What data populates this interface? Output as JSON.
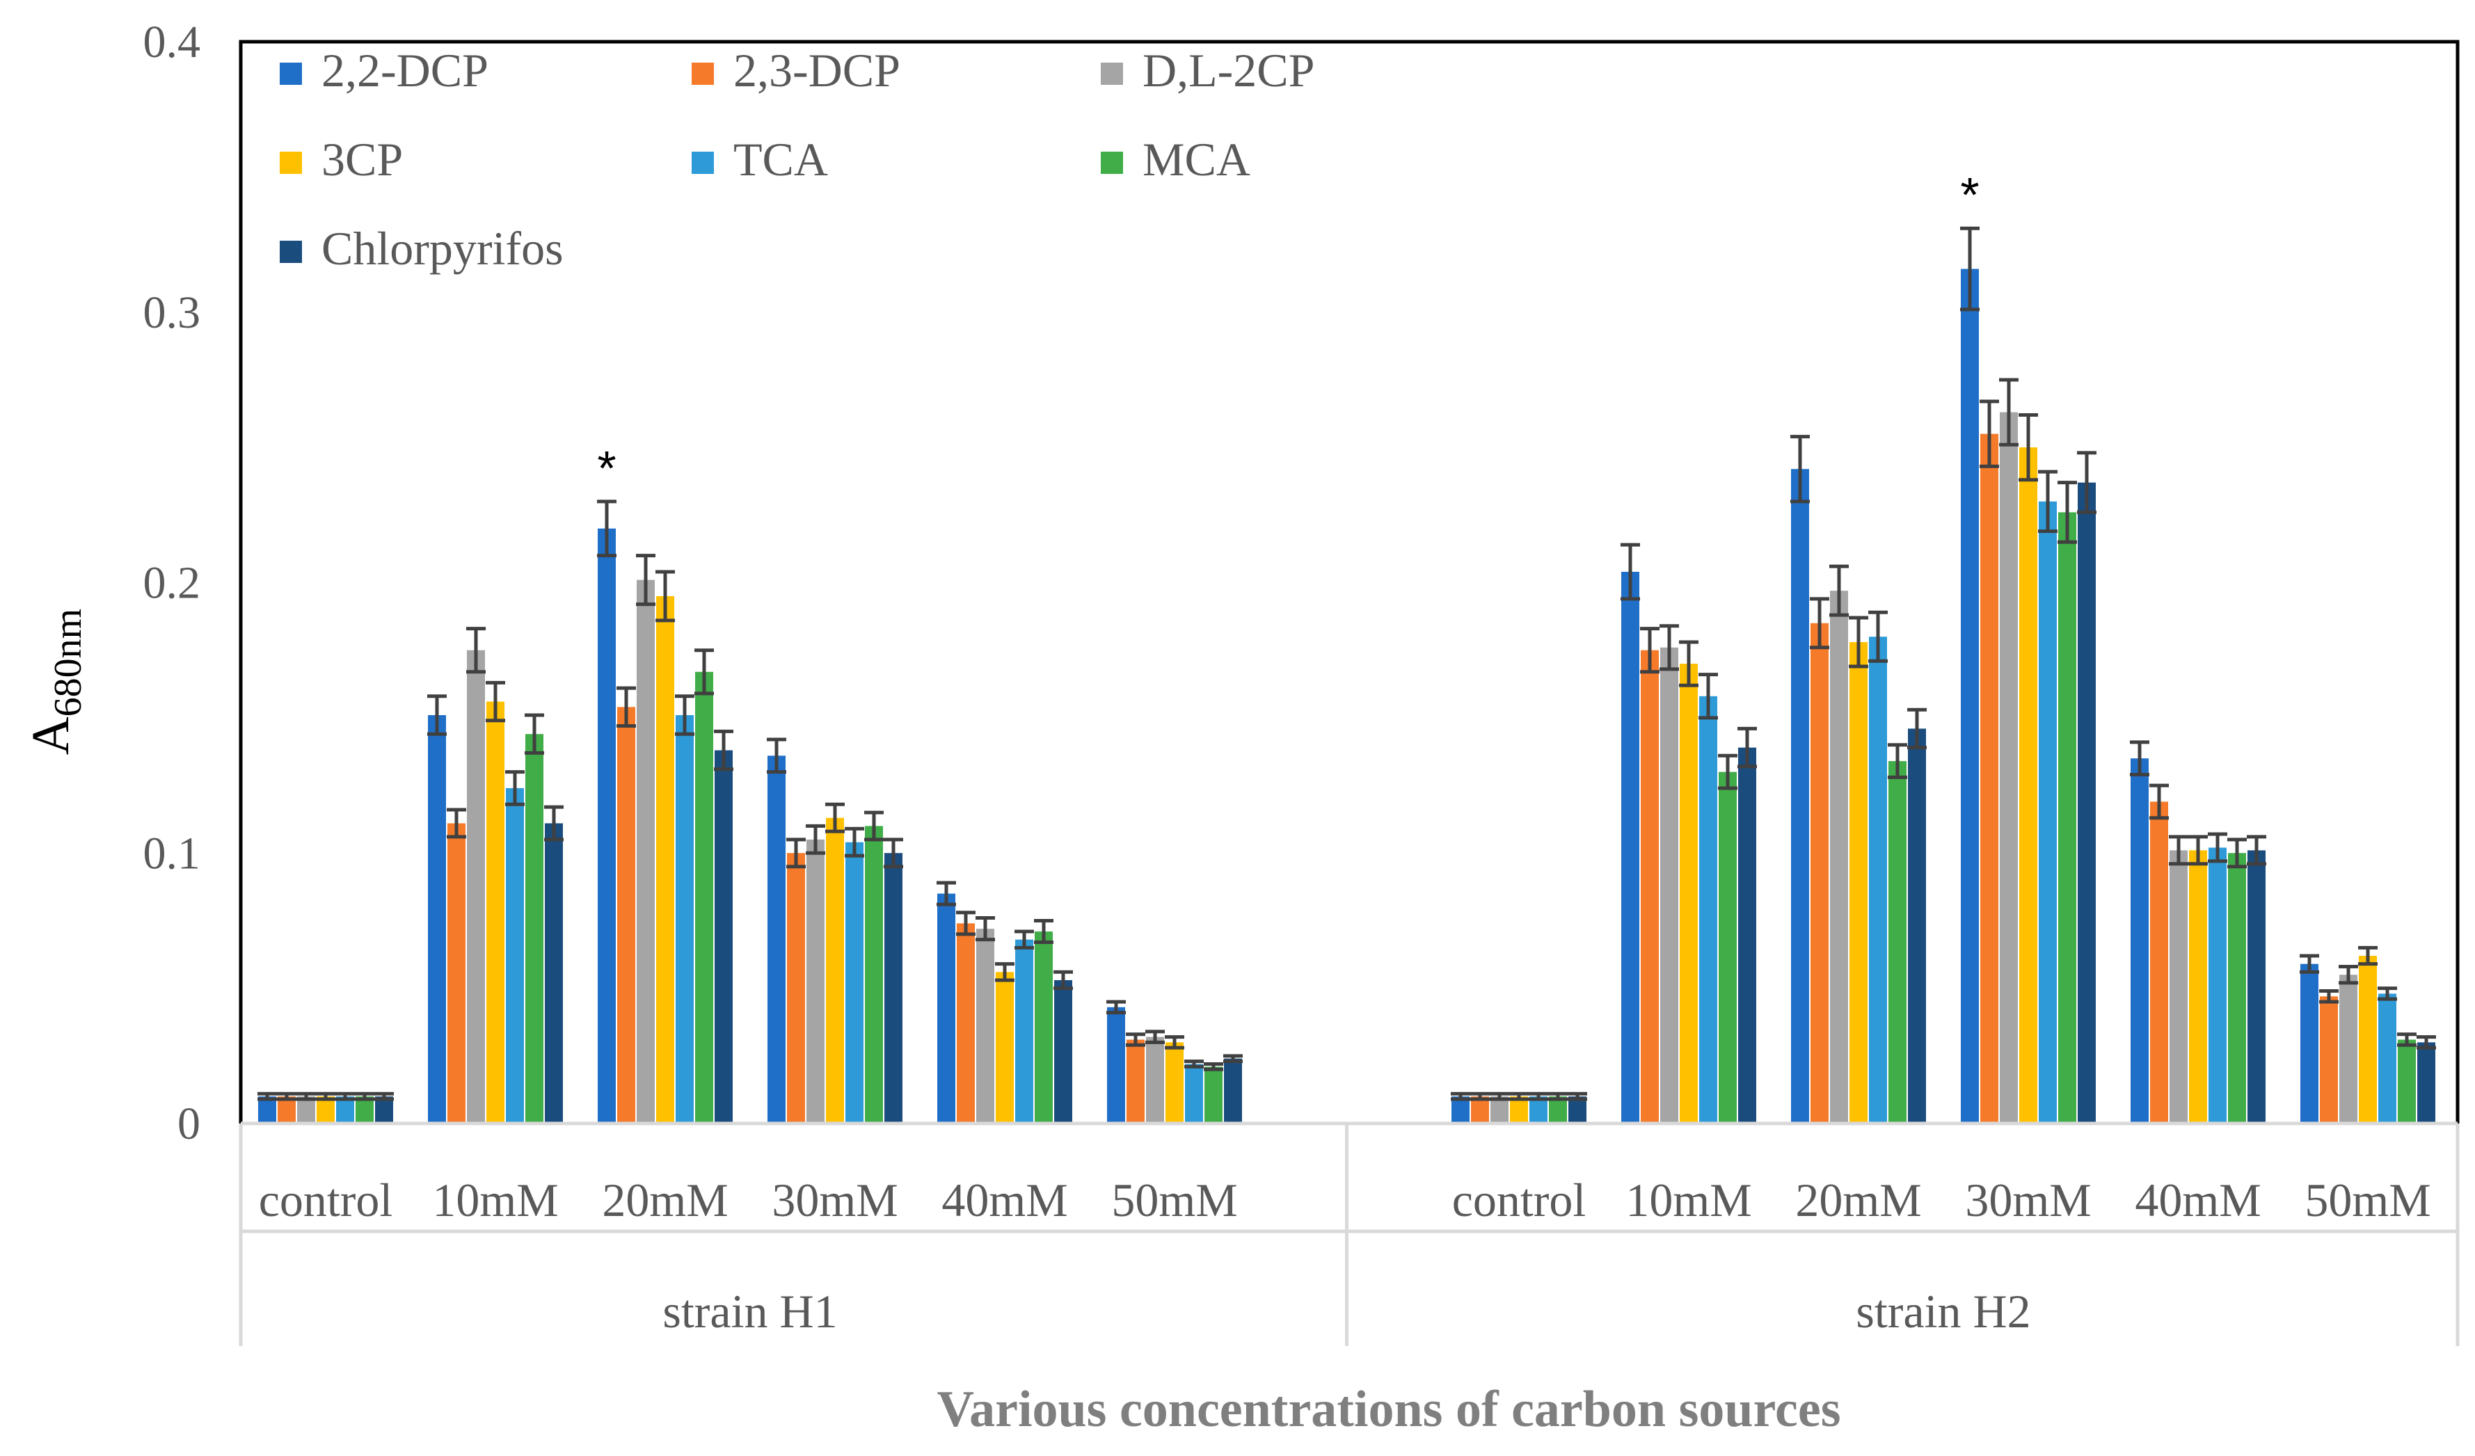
{
  "chart_data": {
    "type": "bar",
    "title": "",
    "xlabel": "Various concentrations of carbon sources",
    "ylabel_main": "A",
    "ylabel_sub": "680nm",
    "ylim": [
      0,
      0.4
    ],
    "yticks": [
      "0",
      "0.1",
      "0.2",
      "0.3",
      "0.4"
    ],
    "legend_position": "top-left",
    "legend_cols": 3,
    "annotation_symbol": "*",
    "series": [
      {
        "name": "2,2-DCP",
        "color": "#1F6FC9"
      },
      {
        "name": "2,3-DCP",
        "color": "#F57A2A"
      },
      {
        "name": "D,L-2CP",
        "color": "#A5A5A5"
      },
      {
        "name": "3CP",
        "color": "#FFC000"
      },
      {
        "name": "TCA",
        "color": "#2E9BD8"
      },
      {
        "name": "MCA",
        "color": "#40AD48"
      },
      {
        "name": "Chlorpyrifos",
        "color": "#1B4C7E"
      }
    ],
    "groups": [
      {
        "label": "strain H1",
        "categories": [
          {
            "label": "control",
            "values": [
              0.01,
              0.01,
              0.01,
              0.01,
              0.01,
              0.01,
              0.01
            ],
            "errors": [
              0.001,
              0.001,
              0.001,
              0.001,
              0.001,
              0.001,
              0.001
            ]
          },
          {
            "label": "10mM",
            "values": [
              0.151,
              0.111,
              0.175,
              0.156,
              0.124,
              0.144,
              0.111
            ],
            "errors": [
              0.007,
              0.005,
              0.008,
              0.007,
              0.006,
              0.007,
              0.006
            ]
          },
          {
            "label": "20mM",
            "values": [
              0.22,
              0.154,
              0.201,
              0.195,
              0.151,
              0.167,
              0.138
            ],
            "errors": [
              0.01,
              0.007,
              0.009,
              0.009,
              0.007,
              0.008,
              0.007
            ]
          },
          {
            "label": "30mM",
            "values": [
              0.136,
              0.1,
              0.105,
              0.113,
              0.104,
              0.11,
              0.1
            ],
            "errors": [
              0.006,
              0.005,
              0.005,
              0.005,
              0.005,
              0.005,
              0.005
            ]
          },
          {
            "label": "40mM",
            "values": [
              0.085,
              0.074,
              0.072,
              0.056,
              0.068,
              0.071,
              0.053
            ],
            "errors": [
              0.004,
              0.004,
              0.004,
              0.003,
              0.003,
              0.004,
              0.003
            ]
          },
          {
            "label": "50mM",
            "values": [
              0.043,
              0.031,
              0.032,
              0.03,
              0.022,
              0.021,
              0.024
            ],
            "errors": [
              0.002,
              0.002,
              0.002,
              0.002,
              0.001,
              0.001,
              0.001
            ]
          }
        ],
        "starred_category": "20mM"
      },
      {
        "label": "strain H2",
        "categories": [
          {
            "label": "control",
            "values": [
              0.01,
              0.01,
              0.01,
              0.01,
              0.01,
              0.01,
              0.01
            ],
            "errors": [
              0.001,
              0.001,
              0.001,
              0.001,
              0.001,
              0.001,
              0.001
            ]
          },
          {
            "label": "10mM",
            "values": [
              0.204,
              0.175,
              0.176,
              0.17,
              0.158,
              0.13,
              0.139
            ],
            "errors": [
              0.01,
              0.008,
              0.008,
              0.008,
              0.008,
              0.006,
              0.007
            ]
          },
          {
            "label": "20mM",
            "values": [
              0.242,
              0.185,
              0.197,
              0.178,
              0.18,
              0.134,
              0.146
            ],
            "errors": [
              0.012,
              0.009,
              0.009,
              0.009,
              0.009,
              0.006,
              0.007
            ]
          },
          {
            "label": "30mM",
            "values": [
              0.316,
              0.255,
              0.263,
              0.25,
              0.23,
              0.226,
              0.237
            ],
            "errors": [
              0.015,
              0.012,
              0.012,
              0.012,
              0.011,
              0.011,
              0.011
            ]
          },
          {
            "label": "40mM",
            "values": [
              0.135,
              0.119,
              0.101,
              0.101,
              0.102,
              0.1,
              0.101
            ],
            "errors": [
              0.006,
              0.006,
              0.005,
              0.005,
              0.005,
              0.005,
              0.005
            ]
          },
          {
            "label": "50mM",
            "values": [
              0.059,
              0.047,
              0.055,
              0.062,
              0.048,
              0.031,
              0.03
            ],
            "errors": [
              0.003,
              0.002,
              0.003,
              0.003,
              0.002,
              0.002,
              0.002
            ]
          }
        ],
        "starred_category": "30mM"
      }
    ]
  }
}
